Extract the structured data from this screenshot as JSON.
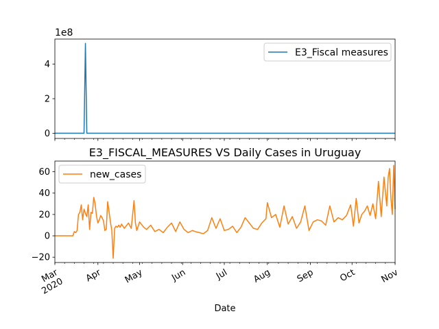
{
  "chart_data": [
    {
      "type": "line",
      "title": "",
      "xlabel": "",
      "ylabel": "",
      "y_offset_label": "1e8",
      "ylim": [
        -0.3,
        5.45
      ],
      "yticks": [
        0,
        2,
        4
      ],
      "ytick_labels": [
        "0",
        "2",
        "4"
      ],
      "xlim": [
        "2020-03-01",
        "2020-11-01"
      ],
      "legend_position": "upper right",
      "series": [
        {
          "name": "E3_Fiscal measures",
          "color": "#1f77b4",
          "x": [
            "2020-03-01",
            "2020-03-22",
            "2020-03-23",
            "2020-03-24",
            "2020-11-01"
          ],
          "values": [
            0,
            0,
            5.2,
            0,
            0
          ]
        }
      ]
    },
    {
      "type": "line",
      "title": "E3_FISCAL_MEASURES VS Daily Cases in Uruguay",
      "xlabel": "Date",
      "ylabel": "",
      "ylim": [
        -25,
        70
      ],
      "yticks": [
        -20,
        0,
        20,
        40,
        60
      ],
      "ytick_labels": [
        "−20",
        "0",
        "20",
        "40",
        "60"
      ],
      "xlim": [
        "2020-03-01",
        "2020-11-01"
      ],
      "xticks": [
        {
          "date": "2020-03-01",
          "label": "Mar",
          "sub": "2020"
        },
        {
          "date": "2020-04-01",
          "label": "Apr"
        },
        {
          "date": "2020-05-01",
          "label": "May"
        },
        {
          "date": "2020-06-01",
          "label": "Jun"
        },
        {
          "date": "2020-07-01",
          "label": "Jul"
        },
        {
          "date": "2020-08-01",
          "label": "Aug"
        },
        {
          "date": "2020-09-01",
          "label": "Sep"
        },
        {
          "date": "2020-10-01",
          "label": "Oct"
        },
        {
          "date": "2020-11-01",
          "label": "Nov"
        }
      ],
      "legend_position": "upper left",
      "series": [
        {
          "name": "new_cases",
          "color": "#ff7f0e",
          "x": [
            "2020-03-01",
            "2020-03-14",
            "2020-03-15",
            "2020-03-16",
            "2020-03-17",
            "2020-03-18",
            "2020-03-19",
            "2020-03-20",
            "2020-03-21",
            "2020-03-22",
            "2020-03-23",
            "2020-03-24",
            "2020-03-25",
            "2020-03-26",
            "2020-03-27",
            "2020-03-28",
            "2020-03-29",
            "2020-03-30",
            "2020-03-31",
            "2020-04-01",
            "2020-04-02",
            "2020-04-03",
            "2020-04-04",
            "2020-04-05",
            "2020-04-06",
            "2020-04-07",
            "2020-04-08",
            "2020-04-09",
            "2020-04-10",
            "2020-04-11",
            "2020-04-12",
            "2020-04-13",
            "2020-04-14",
            "2020-04-15",
            "2020-04-16",
            "2020-04-17",
            "2020-04-18",
            "2020-04-20",
            "2020-04-23",
            "2020-04-25",
            "2020-04-27",
            "2020-04-28",
            "2020-04-29",
            "2020-05-01",
            "2020-05-04",
            "2020-05-06",
            "2020-05-09",
            "2020-05-12",
            "2020-05-15",
            "2020-05-18",
            "2020-05-21",
            "2020-05-24",
            "2020-05-27",
            "2020-05-30",
            "2020-06-02",
            "2020-06-05",
            "2020-06-08",
            "2020-06-10",
            "2020-06-13",
            "2020-06-16",
            "2020-06-19",
            "2020-06-22",
            "2020-06-25",
            "2020-06-28",
            "2020-07-01",
            "2020-07-04",
            "2020-07-07",
            "2020-07-10",
            "2020-07-13",
            "2020-07-16",
            "2020-07-19",
            "2020-07-22",
            "2020-07-25",
            "2020-07-28",
            "2020-07-31",
            "2020-08-01",
            "2020-08-04",
            "2020-08-07",
            "2020-08-10",
            "2020-08-13",
            "2020-08-16",
            "2020-08-19",
            "2020-08-22",
            "2020-08-25",
            "2020-08-28",
            "2020-08-31",
            "2020-09-03",
            "2020-09-06",
            "2020-09-09",
            "2020-09-12",
            "2020-09-15",
            "2020-09-18",
            "2020-09-21",
            "2020-09-24",
            "2020-09-27",
            "2020-09-30",
            "2020-10-02",
            "2020-10-04",
            "2020-10-06",
            "2020-10-08",
            "2020-10-10",
            "2020-10-12",
            "2020-10-14",
            "2020-10-16",
            "2020-10-18",
            "2020-10-20",
            "2020-10-22",
            "2020-10-24",
            "2020-10-26",
            "2020-10-27",
            "2020-10-28",
            "2020-10-29",
            "2020-10-30",
            "2020-10-31",
            "2020-11-01"
          ],
          "values": [
            0,
            0,
            4,
            3,
            5,
            20,
            22,
            29,
            15,
            25,
            21,
            18,
            29,
            6,
            22,
            21,
            36,
            30,
            18,
            12,
            15,
            19,
            17,
            14,
            5,
            6,
            32,
            23,
            13,
            5,
            -21,
            7,
            9,
            8,
            10,
            8,
            11,
            7,
            12,
            7,
            33,
            12,
            5,
            13,
            8,
            6,
            10,
            4,
            6,
            3,
            8,
            12,
            4,
            13,
            6,
            3,
            5,
            4,
            3,
            2,
            5,
            17,
            7,
            16,
            5,
            6,
            9,
            3,
            8,
            17,
            12,
            7,
            6,
            12,
            16,
            31,
            17,
            20,
            8,
            28,
            11,
            18,
            7,
            13,
            28,
            5,
            13,
            15,
            14,
            10,
            28,
            13,
            17,
            15,
            19,
            29,
            9,
            35,
            12,
            20,
            23,
            28,
            19,
            30,
            16,
            51,
            18,
            55,
            28,
            55,
            63,
            35,
            20,
            66,
            25
          ]
        }
      ]
    }
  ]
}
